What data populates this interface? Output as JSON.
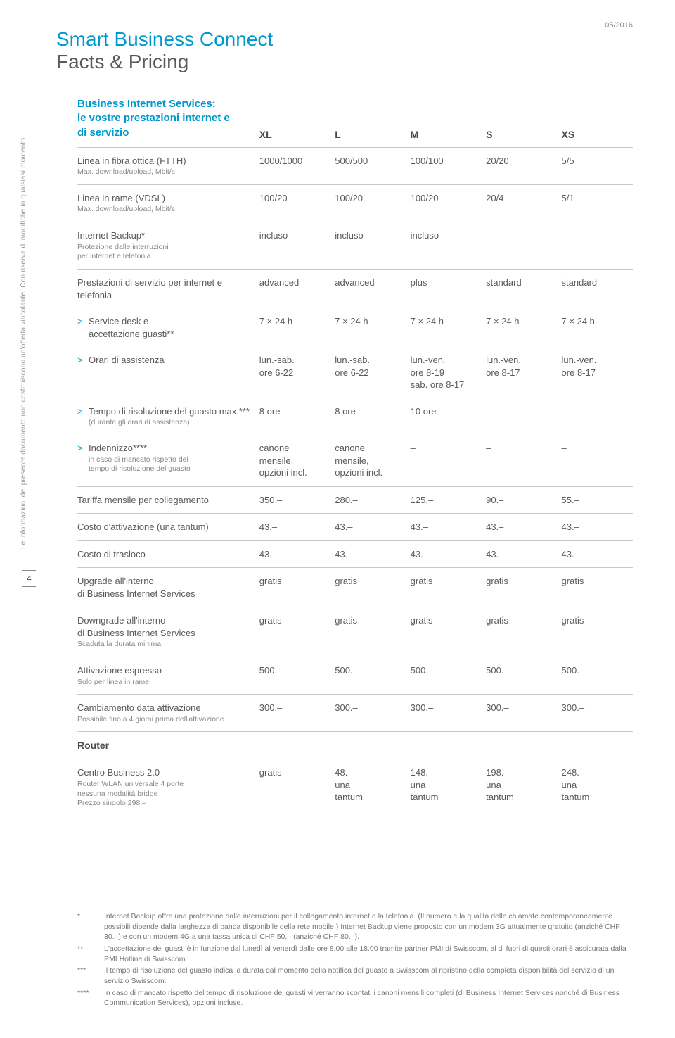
{
  "date": "05/2016",
  "title_line1": "Smart Business Connect",
  "title_line2": "Facts & Pricing",
  "sidebar_disclaimer": "Le informazioni del presente documento non costituiscono un'offerta vincolante. Con riserva di modifiche in qualsiasi momento.",
  "page_number": "4",
  "section_header_l1": "Business Internet Services:",
  "section_header_l2": "le vostre prestazioni internet e",
  "section_header_l3": "di servizio",
  "cols": [
    "XL",
    "L",
    "M",
    "S",
    "XS"
  ],
  "rows": [
    {
      "label": "Linea in fibra ottica (FTTH)",
      "sub": "Max. download/upload, Mbit/s",
      "vals": [
        "1000/1000",
        "500/500",
        "100/100",
        "20/20",
        "5/5"
      ]
    },
    {
      "label": "Linea in rame (VDSL)",
      "sub": "Max. download/upload, Mbit/s",
      "vals": [
        "100/20",
        "100/20",
        "100/20",
        "20/4",
        "5/1"
      ]
    },
    {
      "label": "Internet Backup*",
      "sub": "Protezione dalle interruzioni\nper internet e telefonia",
      "vals": [
        "incluso",
        "incluso",
        "incluso",
        "–",
        "–"
      ]
    },
    {
      "label": "Prestazioni di servizio per internet e telefonia",
      "vals": [
        "advanced",
        "advanced",
        "plus",
        "standard",
        "standard"
      ],
      "noborder": true
    },
    {
      "label": "Service desk e\naccettazione guasti**",
      "indent": true,
      "vals": [
        "7 × 24 h",
        "7 × 24 h",
        "7 × 24 h",
        "7 × 24 h",
        "7 × 24 h"
      ],
      "noborder": true
    },
    {
      "label": "Orari di assistenza",
      "indent": true,
      "vals": [
        "lun.-sab.\nore 6-22",
        "lun.-sab.\nore 6-22",
        "lun.-ven.\nore 8-19\nsab. ore 8-17",
        "lun.-ven.\nore 8-17",
        "lun.-ven.\nore 8-17"
      ],
      "noborder": true
    },
    {
      "label": "Tempo di risoluzione del guasto max.***",
      "sub": "(durante gli orari di assistenza)",
      "indent": true,
      "vals": [
        "8 ore",
        "8 ore",
        "10 ore",
        "–",
        "–"
      ],
      "noborder": true
    },
    {
      "label": "Indennizzo****",
      "sub": "in caso di mancato rispetto del\ntempo di risoluzione del guasto",
      "indent": true,
      "vals": [
        "canone\nmensile,\nopzioni incl.",
        "canone\nmensile,\nopzioni incl.",
        "–",
        "–",
        "–"
      ]
    },
    {
      "label": "Tariffa mensile per collegamento",
      "vals": [
        "350.–",
        "280.–",
        "125.–",
        "90.–",
        "55.–"
      ]
    },
    {
      "label": "Costo d'attivazione (una tantum)",
      "vals": [
        "43.–",
        "43.–",
        "43.–",
        "43.–",
        "43.–"
      ]
    },
    {
      "label": "Costo di trasloco",
      "vals": [
        "43.–",
        "43.–",
        "43.–",
        "43.–",
        "43.–"
      ]
    },
    {
      "label": "Upgrade all'interno\ndi Business Internet Services",
      "vals": [
        "gratis",
        "gratis",
        "gratis",
        "gratis",
        "gratis"
      ]
    },
    {
      "label": "Downgrade all'interno\ndi Business Internet Services",
      "sub": "Scaduta la durata minima",
      "vals": [
        "gratis",
        "gratis",
        "gratis",
        "gratis",
        "gratis"
      ]
    },
    {
      "label": "Attivazione espresso",
      "sub": "Solo per linea in rame",
      "vals": [
        "500.–",
        "500.–",
        "500.–",
        "500.–",
        "500.–"
      ]
    },
    {
      "label": "Cambiamento data attivazione",
      "sub": "Possibile fino a 4 giorni prima dell'attivazione",
      "vals": [
        "300.–",
        "300.–",
        "300.–",
        "300.–",
        "300.–"
      ]
    }
  ],
  "router_section": "Router",
  "router_row": {
    "label": "Centro Business 2.0",
    "sub": "Router WLAN universale 4 porte\nnessuna modalità bridge\nPrezzo singolo 298.–",
    "vals": [
      "gratis",
      "48.–\nuna\ntantum",
      "148.–\nuna\ntantum",
      "198.–\nuna\ntantum",
      "248.–\nuna\ntantum"
    ]
  },
  "footnotes": [
    {
      "mark": "*",
      "text": "Internet Backup offre una protezione dalle interruzioni per il collegamento internet e la telefonia. (Il numero e la qualità delle chiamate contemporaneamente possibili dipende dalla larghezza di banda disponibile della rete mobile.) Internet Backup viene proposto con un modem 3G attualmente gratuito (anziché CHF 30.–) e con un modem 4G a una tassa unica di CHF 50.– (anziché CHF 80.–)."
    },
    {
      "mark": "**",
      "text": "L'accettazione dei guasti è in funzione dal lunedì al venerdì dalle ore 8.00 alle 18.00 tramite partner PMI di Swisscom, al di fuori di questi orari è assicurata dalla PMI Hotline di Swisscom."
    },
    {
      "mark": "***",
      "text": "Il tempo di risoluzione del guasto indica la durata dal momento della notifica del guasto a Swisscom al ripristino della completa disponibilità del servizio di un servizio Swisscom."
    },
    {
      "mark": "****",
      "text": "In caso di mancato rispetto del tempo di risoluzione dei guasti vi verranno scontati i canoni mensili completi (di Business Internet Services nonché di Business Communication Services), opzioni incluse."
    }
  ]
}
